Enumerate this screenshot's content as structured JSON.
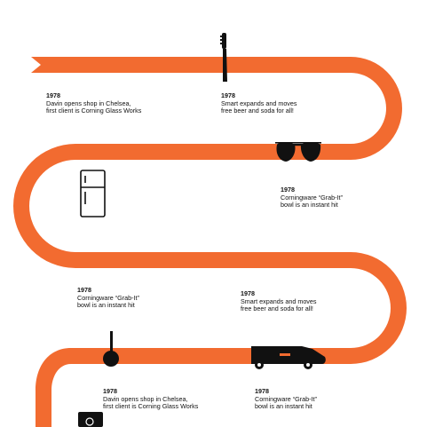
{
  "colors": {
    "ribbon": "#F26B30",
    "icon": "#111111",
    "text": "#111111",
    "background": "#FFFFFF"
  },
  "events": [
    {
      "year": "1978",
      "line1": "Davin opens shop in Chelsea,",
      "line2": "first client is Corning Glass Works",
      "icon": "toothbrush-icon"
    },
    {
      "year": "1978",
      "line1": "Smart expands and moves",
      "line2": "free beer and soda for all!",
      "icon": "toothbrush-icon"
    },
    {
      "year": "1978",
      "line1": "Corningware “Grab-It”",
      "line2": "bowl is an instant hit",
      "icon": "sunglasses-icon"
    },
    {
      "year": "1978",
      "line1": "Corningware “Grab-It”",
      "line2": "bowl is an instant hit",
      "icon": "refrigerator-icon"
    },
    {
      "year": "1978",
      "line1": "Smart expands and moves",
      "line2": "free beer and soda for all!",
      "icon": "van-icon"
    },
    {
      "year": "1978",
      "line1": "Davin opens shop in Chelsea,",
      "line2": "first client is Corning Glass Works",
      "icon": "ladle-icon"
    },
    {
      "year": "1978",
      "line1": "Corningware “Grab-It”",
      "line2": "bowl is an instant hit",
      "icon": "van-icon"
    }
  ]
}
